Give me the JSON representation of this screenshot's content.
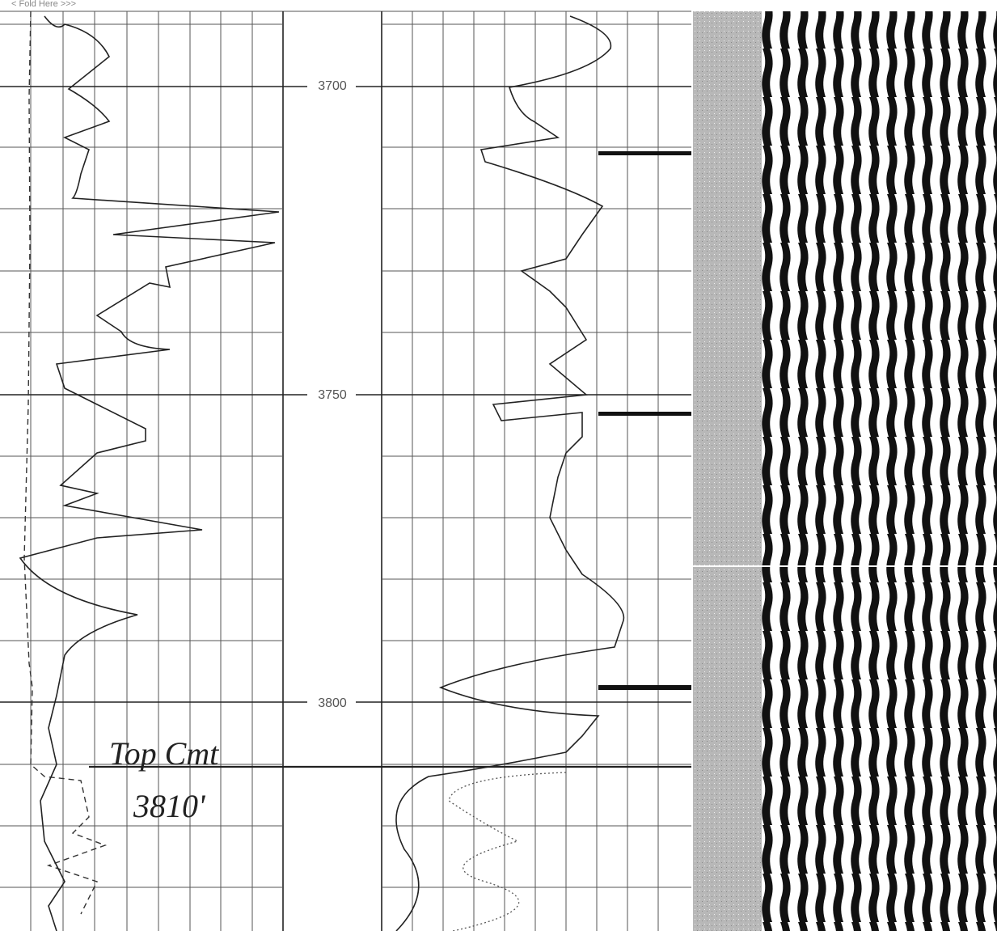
{
  "header": {
    "fold_note": "< Fold Here >>>"
  },
  "depth_labels": [
    "3700",
    "3750",
    "3800"
  ],
  "annotation": {
    "line1": "Top Cmt",
    "line2": "3810'"
  }
}
